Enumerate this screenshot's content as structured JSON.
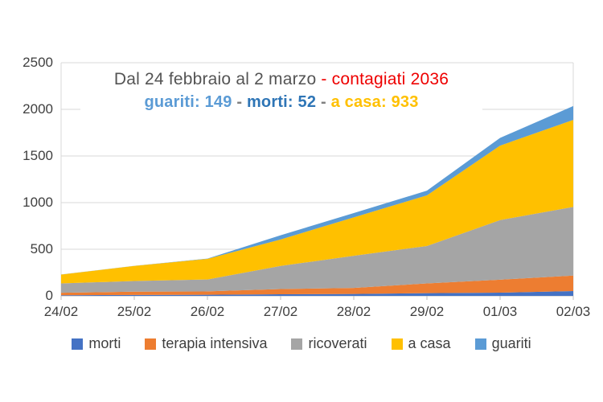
{
  "page": {
    "background": "#ffffff"
  },
  "title": {
    "line1_parts": [
      {
        "text": "Dal 24 febbraio al 2 marzo ",
        "color": "#545454"
      },
      {
        "text": "- contagiati 2036",
        "color": "#ee0000"
      }
    ],
    "line2_parts": [
      {
        "text": "guariti: 149",
        "color": "#5b9bd5"
      },
      {
        "text": " - ",
        "color": "#7f7f7f"
      },
      {
        "text": " morti: 52",
        "color": "#2e75b6"
      },
      {
        "text": " - ",
        "color": "#7f7f7f"
      },
      {
        "text": "a casa: 933",
        "color": "#ffc000"
      }
    ]
  },
  "chart_data": {
    "type": "area",
    "stacked": true,
    "title": "Dal 24 febbraio al 2 marzo - contagiati 2036",
    "subtitle": "guariti: 149 - morti: 52 - a casa: 933",
    "categories": [
      "24/02",
      "25/02",
      "26/02",
      "27/02",
      "28/02",
      "29/02",
      "01/03",
      "02/03"
    ],
    "series": [
      {
        "name": "morti",
        "color": "#4472c4",
        "values": [
          7,
          10,
          12,
          17,
          21,
          29,
          34,
          52
        ]
      },
      {
        "name": "terapia intensiva",
        "color": "#ed7d31",
        "values": [
          26,
          35,
          36,
          56,
          64,
          105,
          140,
          166
        ]
      },
      {
        "name": "ricoverati",
        "color": "#a5a5a5",
        "values": [
          101,
          114,
          128,
          248,
          345,
          401,
          639,
          736
        ]
      },
      {
        "name": "a casa",
        "color": "#ffc000",
        "values": [
          94,
          162,
          221,
          284,
          412,
          543,
          798,
          933
        ]
      },
      {
        "name": "guariti",
        "color": "#5b9bd5",
        "values": [
          1,
          1,
          3,
          45,
          46,
          50,
          83,
          149
        ]
      }
    ],
    "stacked_totals": [
      229,
      322,
      400,
      650,
      888,
      1128,
      1694,
      2036
    ],
    "xlabel": "",
    "ylabel": "",
    "ylim": [
      0,
      2500
    ],
    "yticks": [
      0,
      500,
      1000,
      1500,
      2000,
      2500
    ],
    "grid": true,
    "legend_position": "bottom",
    "axis_style": {
      "grid_color": "#d9d9d9",
      "axis_color": "#bfbfbf",
      "label_color": "#3f3f3f"
    }
  }
}
